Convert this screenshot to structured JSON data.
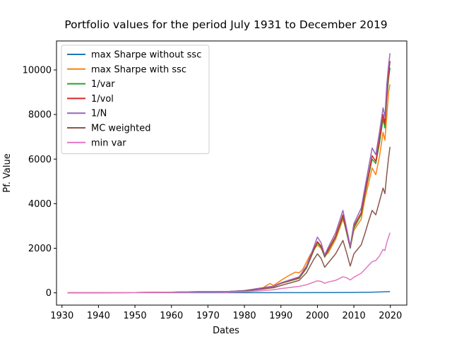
{
  "chart_data": {
    "type": "line",
    "title": "Portfolio values for the period July 1931 to December 2019",
    "xlabel": "Dates",
    "ylabel": "Pf. Value",
    "xlim": [
      1928.5,
      2024.5
    ],
    "ylim": [
      -550,
      11300
    ],
    "xticks": [
      1930,
      1940,
      1950,
      1960,
      1970,
      1980,
      1990,
      2000,
      2010,
      2020
    ],
    "yticks": [
      0,
      2000,
      4000,
      6000,
      8000,
      10000
    ],
    "legend_position": "upper-left",
    "grid": false,
    "series": [
      {
        "name": "max Sharpe without ssc",
        "color": "#1f77b4",
        "points": [
          [
            1931.5,
            10
          ],
          [
            1950,
            10
          ],
          [
            1970,
            10
          ],
          [
            1985,
            10
          ],
          [
            1995,
            10
          ],
          [
            2005,
            12
          ],
          [
            2010,
            15
          ],
          [
            2015,
            30
          ],
          [
            2019.9,
            55
          ]
        ]
      },
      {
        "name": "max Sharpe with ssc",
        "color": "#ff7f0e",
        "points": [
          [
            1931.5,
            10
          ],
          [
            1940,
            10
          ],
          [
            1950,
            12
          ],
          [
            1960,
            25
          ],
          [
            1970,
            55
          ],
          [
            1975,
            45
          ],
          [
            1980,
            90
          ],
          [
            1985,
            220
          ],
          [
            1987,
            420
          ],
          [
            1988,
            330
          ],
          [
            1990,
            560
          ],
          [
            1992,
            760
          ],
          [
            1994,
            930
          ],
          [
            1995,
            900
          ],
          [
            1996,
            1050
          ],
          [
            1998,
            1700
          ],
          [
            2000,
            2150
          ],
          [
            2001,
            2000
          ],
          [
            2002,
            1650
          ],
          [
            2003,
            1800
          ],
          [
            2005,
            2400
          ],
          [
            2007,
            3300
          ],
          [
            2008,
            2800
          ],
          [
            2009,
            2050
          ],
          [
            2010,
            2800
          ],
          [
            2012,
            3300
          ],
          [
            2013,
            4200
          ],
          [
            2014,
            4900
          ],
          [
            2015,
            5600
          ],
          [
            2016,
            5300
          ],
          [
            2017,
            6100
          ],
          [
            2018,
            7200
          ],
          [
            2018.5,
            6850
          ],
          [
            2019,
            7900
          ],
          [
            2019.5,
            9000
          ],
          [
            2019.9,
            9350
          ]
        ]
      },
      {
        "name": "1/var",
        "color": "#2ca02c",
        "points": [
          [
            1931.5,
            10
          ],
          [
            1940,
            10
          ],
          [
            1950,
            12
          ],
          [
            1960,
            30
          ],
          [
            1970,
            60
          ],
          [
            1975,
            50
          ],
          [
            1980,
            100
          ],
          [
            1985,
            210
          ],
          [
            1988,
            280
          ],
          [
            1990,
            420
          ],
          [
            1995,
            650
          ],
          [
            1997,
            1100
          ],
          [
            1999,
            1900
          ],
          [
            2000,
            2250
          ],
          [
            2001,
            2050
          ],
          [
            2002,
            1600
          ],
          [
            2003,
            1900
          ],
          [
            2005,
            2500
          ],
          [
            2007,
            3400
          ],
          [
            2008,
            2700
          ],
          [
            2009,
            2000
          ],
          [
            2010,
            2900
          ],
          [
            2012,
            3500
          ],
          [
            2013,
            4400
          ],
          [
            2014,
            5200
          ],
          [
            2015,
            6000
          ],
          [
            2016,
            5800
          ],
          [
            2017,
            6700
          ],
          [
            2018,
            7800
          ],
          [
            2018.5,
            7400
          ],
          [
            2019,
            8700
          ],
          [
            2019.5,
            9600
          ],
          [
            2019.9,
            10100
          ]
        ]
      },
      {
        "name": "1/vol",
        "color": "#d62728",
        "points": [
          [
            1931.5,
            10
          ],
          [
            1940,
            10
          ],
          [
            1950,
            12
          ],
          [
            1960,
            30
          ],
          [
            1970,
            60
          ],
          [
            1975,
            50
          ],
          [
            1980,
            100
          ],
          [
            1985,
            220
          ],
          [
            1988,
            290
          ],
          [
            1990,
            430
          ],
          [
            1995,
            680
          ],
          [
            1997,
            1150
          ],
          [
            1999,
            1950
          ],
          [
            2000,
            2300
          ],
          [
            2001,
            2100
          ],
          [
            2002,
            1650
          ],
          [
            2003,
            1950
          ],
          [
            2005,
            2550
          ],
          [
            2007,
            3500
          ],
          [
            2008,
            2750
          ],
          [
            2009,
            2050
          ],
          [
            2010,
            3000
          ],
          [
            2012,
            3600
          ],
          [
            2013,
            4500
          ],
          [
            2014,
            5300
          ],
          [
            2015,
            6150
          ],
          [
            2016,
            5900
          ],
          [
            2017,
            6900
          ],
          [
            2018,
            8000
          ],
          [
            2018.5,
            7600
          ],
          [
            2019,
            8900
          ],
          [
            2019.5,
            9800
          ],
          [
            2019.9,
            10400
          ]
        ]
      },
      {
        "name": "1/N",
        "color": "#9467bd",
        "points": [
          [
            1931.5,
            10
          ],
          [
            1940,
            10
          ],
          [
            1950,
            12
          ],
          [
            1960,
            30
          ],
          [
            1970,
            60
          ],
          [
            1975,
            50
          ],
          [
            1980,
            100
          ],
          [
            1985,
            230
          ],
          [
            1988,
            300
          ],
          [
            1990,
            450
          ],
          [
            1995,
            720
          ],
          [
            1997,
            1200
          ],
          [
            1999,
            2050
          ],
          [
            2000,
            2500
          ],
          [
            2001,
            2250
          ],
          [
            2002,
            1700
          ],
          [
            2003,
            2050
          ],
          [
            2005,
            2700
          ],
          [
            2007,
            3700
          ],
          [
            2008,
            2900
          ],
          [
            2009,
            2100
          ],
          [
            2010,
            3100
          ],
          [
            2012,
            3800
          ],
          [
            2013,
            4700
          ],
          [
            2014,
            5600
          ],
          [
            2015,
            6500
          ],
          [
            2016,
            6200
          ],
          [
            2017,
            7200
          ],
          [
            2018,
            8300
          ],
          [
            2018.5,
            7900
          ],
          [
            2019,
            9300
          ],
          [
            2019.5,
            10200
          ],
          [
            2019.9,
            10750
          ]
        ]
      },
      {
        "name": "MC weighted",
        "color": "#8c564b",
        "points": [
          [
            1931.5,
            10
          ],
          [
            1940,
            10
          ],
          [
            1950,
            12
          ],
          [
            1960,
            25
          ],
          [
            1970,
            50
          ],
          [
            1975,
            40
          ],
          [
            1980,
            80
          ],
          [
            1985,
            170
          ],
          [
            1988,
            230
          ],
          [
            1990,
            330
          ],
          [
            1995,
            560
          ],
          [
            1997,
            900
          ],
          [
            1999,
            1500
          ],
          [
            2000,
            1750
          ],
          [
            2001,
            1550
          ],
          [
            2002,
            1150
          ],
          [
            2003,
            1350
          ],
          [
            2005,
            1750
          ],
          [
            2007,
            2350
          ],
          [
            2008,
            1800
          ],
          [
            2009,
            1200
          ],
          [
            2010,
            1750
          ],
          [
            2012,
            2150
          ],
          [
            2013,
            2650
          ],
          [
            2014,
            3200
          ],
          [
            2015,
            3700
          ],
          [
            2016,
            3500
          ],
          [
            2017,
            4100
          ],
          [
            2018,
            4700
          ],
          [
            2018.5,
            4450
          ],
          [
            2019,
            5300
          ],
          [
            2019.5,
            6050
          ],
          [
            2019.9,
            6550
          ]
        ]
      },
      {
        "name": "min var",
        "color": "#e377c2",
        "points": [
          [
            1931.5,
            10
          ],
          [
            1940,
            10
          ],
          [
            1950,
            12
          ],
          [
            1960,
            20
          ],
          [
            1970,
            35
          ],
          [
            1975,
            30
          ],
          [
            1980,
            50
          ],
          [
            1985,
            100
          ],
          [
            1988,
            140
          ],
          [
            1990,
            190
          ],
          [
            1995,
            290
          ],
          [
            1997,
            360
          ],
          [
            1999,
            480
          ],
          [
            2000,
            540
          ],
          [
            2001,
            510
          ],
          [
            2002,
            430
          ],
          [
            2003,
            490
          ],
          [
            2005,
            560
          ],
          [
            2007,
            720
          ],
          [
            2008,
            680
          ],
          [
            2009,
            580
          ],
          [
            2010,
            700
          ],
          [
            2012,
            880
          ],
          [
            2013,
            1050
          ],
          [
            2014,
            1230
          ],
          [
            2015,
            1400
          ],
          [
            2016,
            1450
          ],
          [
            2017,
            1650
          ],
          [
            2018,
            1950
          ],
          [
            2018.5,
            1900
          ],
          [
            2019,
            2250
          ],
          [
            2019.5,
            2500
          ],
          [
            2019.9,
            2700
          ]
        ]
      }
    ]
  }
}
